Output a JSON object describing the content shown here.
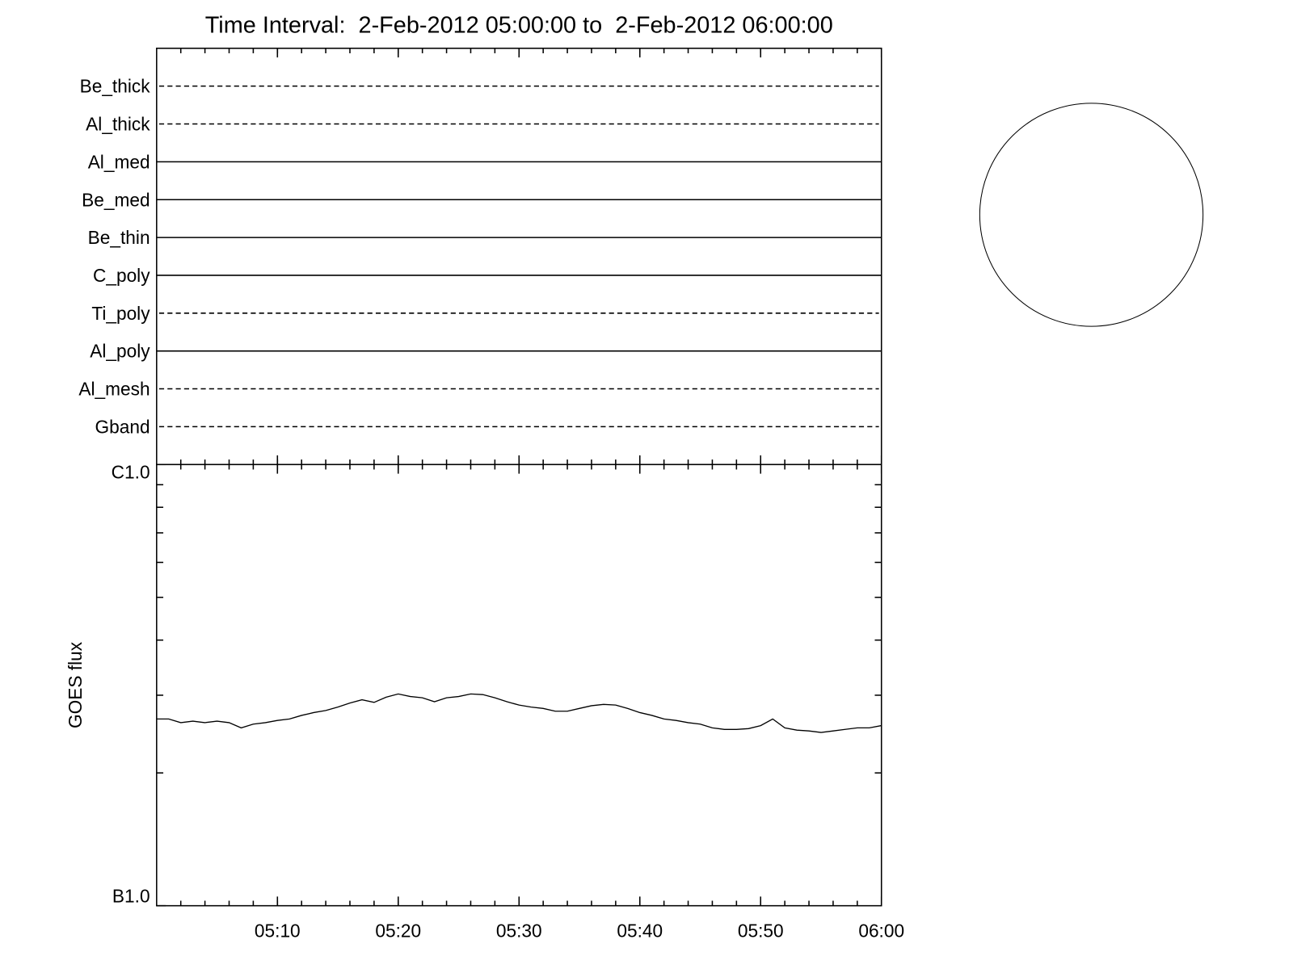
{
  "chart_data": [
    {
      "type": "timeline",
      "title": "Time Interval:  2-Feb-2012 05:00:00 to  2-Feb-2012 06:00:00",
      "rows": [
        {
          "name": "Be_thick",
          "dashed": true
        },
        {
          "name": "Al_thick",
          "dashed": true
        },
        {
          "name": "Al_med",
          "dashed": false
        },
        {
          "name": "Be_med",
          "dashed": false
        },
        {
          "name": "Be_thin",
          "dashed": false
        },
        {
          "name": "C_poly",
          "dashed": false
        },
        {
          "name": "Ti_poly",
          "dashed": true
        },
        {
          "name": "Al_poly",
          "dashed": false
        },
        {
          "name": "Al_mesh",
          "dashed": true
        },
        {
          "name": "Gband",
          "dashed": true
        }
      ]
    },
    {
      "type": "line",
      "y_label": "GOES flux",
      "color": "#000000",
      "log_y": true,
      "x_minor_ticks": 5,
      "xlim": [
        "05:00",
        "06:00"
      ],
      "xticks": [
        "05:10",
        "05:20",
        "05:30",
        "05:40",
        "05:50",
        "06:00"
      ],
      "ylim": [
        1e-07,
        1e-06
      ],
      "yticks": [
        {
          "value": 1e-06,
          "label": "C1.0"
        },
        {
          "value": 1e-07,
          "label": "B1.0"
        }
      ],
      "x": [
        "05:00",
        "05:01",
        "05:02",
        "05:03",
        "05:04",
        "05:05",
        "05:06",
        "05:07",
        "05:08",
        "05:09",
        "05:10",
        "05:11",
        "05:12",
        "05:13",
        "05:14",
        "05:15",
        "05:16",
        "05:17",
        "05:18",
        "05:19",
        "05:20",
        "05:21",
        "05:22",
        "05:23",
        "05:24",
        "05:25",
        "05:26",
        "05:27",
        "05:28",
        "05:29",
        "05:30",
        "05:31",
        "05:32",
        "05:33",
        "05:34",
        "05:35",
        "05:36",
        "05:37",
        "05:38",
        "05:39",
        "05:40",
        "05:41",
        "05:42",
        "05:43",
        "05:44",
        "05:45",
        "05:46",
        "05:47",
        "05:48",
        "05:49",
        "05:50",
        "05:51",
        "05:52",
        "05:53",
        "05:54",
        "05:55",
        "05:56",
        "05:57",
        "05:58",
        "05:59",
        "06:00"
      ],
      "values": [
        2.65e-07,
        2.65e-07,
        2.6e-07,
        2.62e-07,
        2.6e-07,
        2.62e-07,
        2.6e-07,
        2.53e-07,
        2.58e-07,
        2.6e-07,
        2.63e-07,
        2.65e-07,
        2.7e-07,
        2.74e-07,
        2.77e-07,
        2.82e-07,
        2.88e-07,
        2.93e-07,
        2.89e-07,
        2.97e-07,
        3.02e-07,
        2.98e-07,
        2.96e-07,
        2.9e-07,
        2.96e-07,
        2.98e-07,
        3.02e-07,
        3.01e-07,
        2.96e-07,
        2.9e-07,
        2.85e-07,
        2.82e-07,
        2.8e-07,
        2.76e-07,
        2.76e-07,
        2.8e-07,
        2.84e-07,
        2.86e-07,
        2.85e-07,
        2.8e-07,
        2.74e-07,
        2.7e-07,
        2.65e-07,
        2.63e-07,
        2.6e-07,
        2.58e-07,
        2.53e-07,
        2.51e-07,
        2.51e-07,
        2.52e-07,
        2.56e-07,
        2.65e-07,
        2.53e-07,
        2.5e-07,
        2.49e-07,
        2.47e-07,
        2.49e-07,
        2.51e-07,
        2.53e-07,
        2.53e-07,
        2.56e-07
      ]
    }
  ]
}
